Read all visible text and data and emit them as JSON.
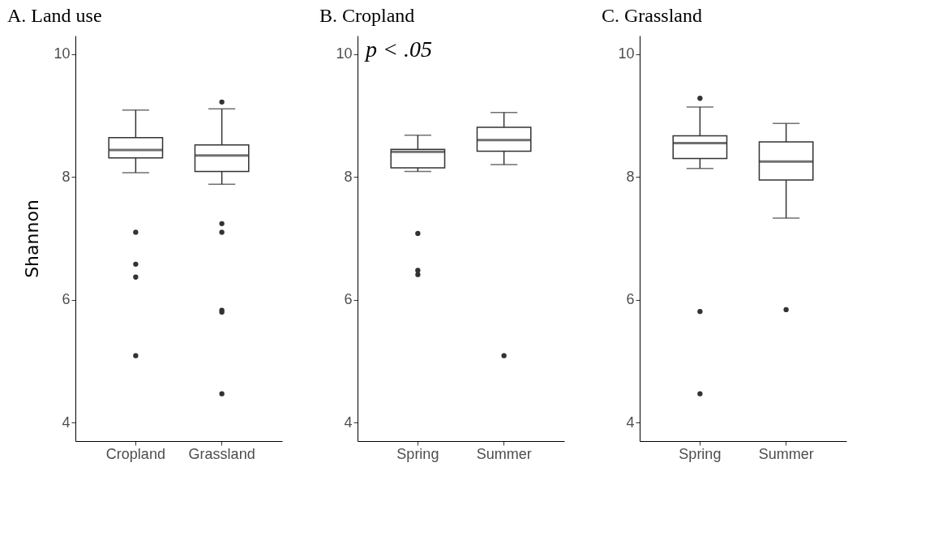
{
  "chart_data": [
    {
      "type": "box",
      "title": "A. Land use",
      "ylabel": "Shannon",
      "categories": [
        "Cropland",
        "Grassland"
      ],
      "ylim": [
        3.7,
        10.3
      ],
      "yticks": [
        4,
        6,
        8,
        10
      ],
      "grid": false,
      "boxes": [
        {
          "low": 8.07,
          "q1": 8.31,
          "median": 8.44,
          "q3": 8.64,
          "high": 9.09,
          "outliers": [
            7.1,
            6.58,
            6.37,
            5.09
          ]
        },
        {
          "low": 7.88,
          "q1": 8.09,
          "median": 8.35,
          "q3": 8.52,
          "high": 9.11,
          "outliers": [
            9.22,
            7.24,
            7.1,
            5.83,
            5.8,
            4.47
          ]
        }
      ]
    },
    {
      "type": "box",
      "title": "B. Cropland",
      "annotations": [
        "p < .05"
      ],
      "categories": [
        "Spring",
        "Summer"
      ],
      "ylim": [
        3.7,
        10.3
      ],
      "yticks": [
        4,
        6,
        8,
        10
      ],
      "grid": false,
      "boxes": [
        {
          "low": 8.09,
          "q1": 8.15,
          "median": 8.41,
          "q3": 8.45,
          "high": 8.68,
          "outliers": [
            7.08,
            6.48,
            6.41
          ]
        },
        {
          "low": 8.2,
          "q1": 8.42,
          "median": 8.6,
          "q3": 8.81,
          "high": 9.05,
          "outliers": [
            5.09
          ]
        }
      ]
    },
    {
      "type": "box",
      "title": "C. Grassland",
      "categories": [
        "Spring",
        "Summer"
      ],
      "ylim": [
        3.7,
        10.3
      ],
      "yticks": [
        4,
        6,
        8,
        10
      ],
      "grid": false,
      "boxes": [
        {
          "low": 8.14,
          "q1": 8.3,
          "median": 8.55,
          "q3": 8.67,
          "high": 9.14,
          "outliers": [
            9.28,
            5.81,
            4.47
          ]
        },
        {
          "low": 7.33,
          "q1": 7.95,
          "median": 8.25,
          "q3": 8.57,
          "high": 8.87,
          "outliers": [
            5.84
          ]
        }
      ]
    }
  ]
}
